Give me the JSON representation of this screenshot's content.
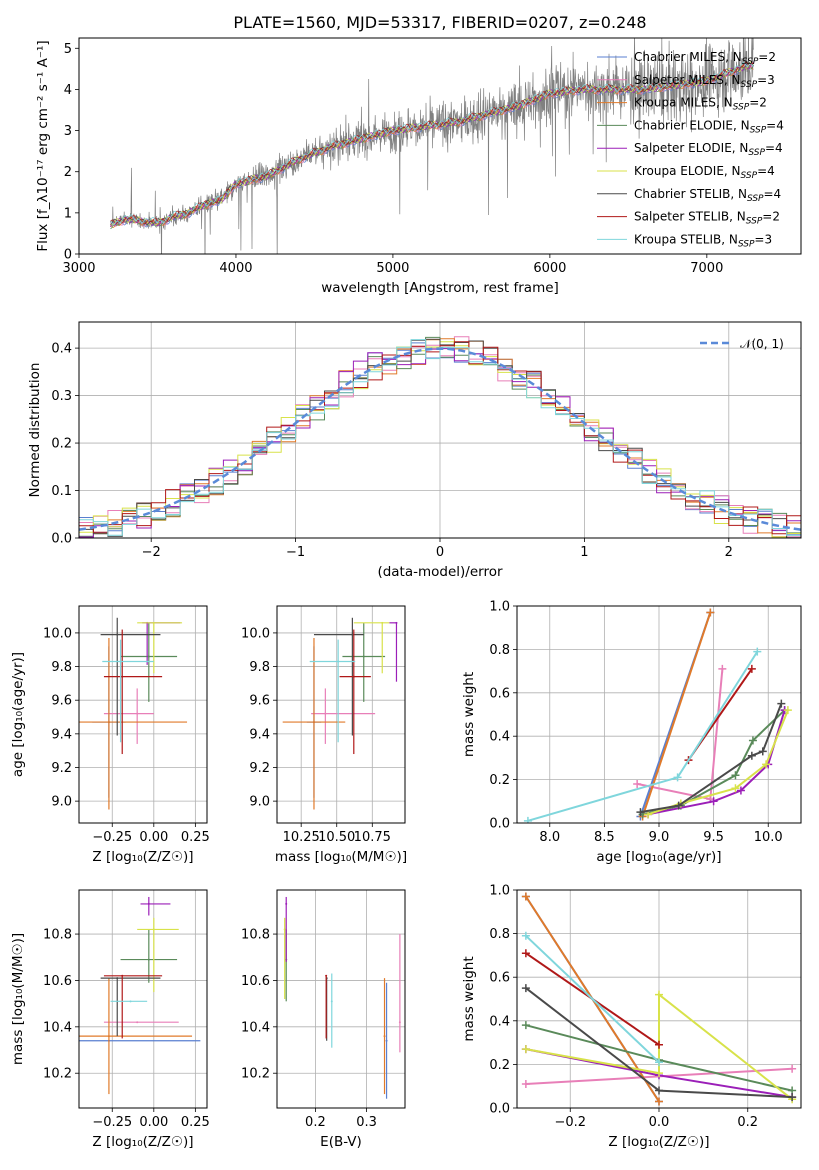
{
  "figure": {
    "title": "PLATE=1560, MJD=53317, FIBERID=0207, z=0.248"
  },
  "colors": {
    "Chabrier MILES": "#5a7fd0",
    "Salpeter MILES": "#e87fb8",
    "Kroupa MILES": "#e07a2a",
    "Chabrier ELODIE": "#5a8a5a",
    "Salpeter ELODIE": "#9b1fb8",
    "Kroupa ELODIE": "#d8e24a",
    "Chabrier STELIB": "#4a4a4a",
    "Salpeter STELIB": "#b01818",
    "Kroupa STELIB": "#7fd6dc",
    "data": "#808080",
    "normal": "#5a8ad8"
  },
  "chart_data": [
    {
      "id": "spectrum",
      "type": "line",
      "xlabel": "wavelength [Angstrom, rest frame]",
      "ylabel": "Flux [f_λ10⁻¹⁷ erg cm⁻² s⁻¹ A⁻¹]",
      "xlim": [
        3000,
        7600
      ],
      "ylim": [
        0,
        5.25
      ],
      "xticks": [
        "3000",
        "4000",
        "5000",
        "6000",
        "7000"
      ],
      "yticks": [
        "0",
        "1",
        "2",
        "3",
        "4",
        "5"
      ],
      "grid": false,
      "legend_position": "right",
      "legend": [
        {
          "name": "Chabrier MILES",
          "nssp": "2"
        },
        {
          "name": "Salpeter MILES",
          "nssp": "3"
        },
        {
          "name": "Kroupa MILES",
          "nssp": "2"
        },
        {
          "name": "Chabrier ELODIE",
          "nssp": "4"
        },
        {
          "name": "Salpeter ELODIE",
          "nssp": "4"
        },
        {
          "name": "Kroupa ELODIE",
          "nssp": "4"
        },
        {
          "name": "Chabrier STELIB",
          "nssp": "4"
        },
        {
          "name": "Salpeter STELIB",
          "nssp": "2"
        },
        {
          "name": "Kroupa STELIB",
          "nssp": "3"
        }
      ],
      "data_range": [
        3200,
        7300
      ],
      "model_knots": {
        "x": [
          3200,
          3300,
          3400,
          3500,
          3600,
          3700,
          3800,
          3900,
          4000,
          4200,
          4400,
          4600,
          4800,
          5000,
          5200,
          5400,
          5600,
          5800,
          6000,
          6200,
          6400,
          6600,
          6800,
          7000,
          7200,
          7300
        ],
        "y": [
          0.7,
          0.85,
          0.8,
          0.75,
          0.9,
          1.0,
          1.2,
          1.3,
          1.7,
          1.9,
          2.3,
          2.6,
          2.8,
          3.0,
          3.1,
          3.2,
          3.4,
          3.6,
          3.9,
          4.0,
          4.0,
          4.0,
          4.1,
          4.2,
          4.5,
          4.6
        ]
      }
    },
    {
      "id": "residuals",
      "type": "step",
      "xlabel": "(data-model)/error",
      "ylabel": "Normed distribution",
      "xlim": [
        -2.5,
        2.5
      ],
      "ylim": [
        0,
        0.455
      ],
      "xticks": [
        "−2",
        "−1",
        "0",
        "1",
        "2"
      ],
      "yticks": [
        "0.0",
        "0.1",
        "0.2",
        "0.3",
        "0.4"
      ],
      "grid": true,
      "legend_position": "top-right",
      "normal_label": "𝒩(0, 1)"
    },
    {
      "id": "Z-age",
      "type": "scatter",
      "xlabel": "Z [log₁₀(Z/Z☉)]",
      "ylabel": "age  [log₁₀(age/yr)]",
      "xlim": [
        -0.45,
        0.32
      ],
      "ylim": [
        8.87,
        10.16
      ],
      "xticks": [
        "−0.25",
        "0.00",
        "0.25"
      ],
      "yticks": [
        "9.0",
        "9.2",
        "9.4",
        "9.6",
        "9.8",
        "10.0"
      ],
      "grid": true,
      "points": [
        {
          "model": "Chabrier MILES",
          "x": -0.27,
          "y": 9.47,
          "xerr": [
            0.1,
            0.1
          ],
          "yerr": [
            0.45,
            0.45
          ]
        },
        {
          "model": "Salpeter MILES",
          "x": -0.1,
          "y": 9.52,
          "xerr": [
            0.2,
            0.1
          ],
          "yerr": [
            0.18,
            0.15
          ]
        },
        {
          "model": "Kroupa MILES",
          "x": -0.27,
          "y": 9.47,
          "xerr": [
            0.2,
            0.47
          ],
          "yerr": [
            0.52,
            0.5
          ]
        },
        {
          "model": "Chabrier ELODIE",
          "x": -0.03,
          "y": 9.86,
          "xerr": [
            0.17,
            0.17
          ],
          "yerr": [
            0.27,
            0.2
          ]
        },
        {
          "model": "Salpeter ELODIE",
          "x": -0.04,
          "y": 10.06,
          "xerr": [
            0.03,
            0.2
          ],
          "yerr": [
            0.25,
            0.0
          ]
        },
        {
          "model": "Kroupa ELODIE",
          "x": 0.0,
          "y": 10.06,
          "xerr": [
            0.1,
            0.17
          ],
          "yerr": [
            0.3,
            0.0
          ]
        },
        {
          "model": "Chabrier STELIB",
          "x": -0.22,
          "y": 9.99,
          "xerr": [
            0.1,
            0.26
          ],
          "yerr": [
            0.6,
            0.1
          ]
        },
        {
          "model": "Salpeter STELIB",
          "x": -0.19,
          "y": 9.74,
          "xerr": [
            0.11,
            0.24
          ],
          "yerr": [
            0.46,
            0.28
          ]
        },
        {
          "model": "Kroupa STELIB",
          "x": -0.2,
          "y": 9.83,
          "xerr": [
            0.11,
            0.2
          ],
          "yerr": [
            0.48,
            0.13
          ]
        }
      ]
    },
    {
      "id": "mass-age",
      "type": "scatter",
      "xlabel": "mass [log₁₀(M/M☉)]",
      "ylabel": "",
      "xlim": [
        10.08,
        10.98
      ],
      "ylim": [
        8.87,
        10.16
      ],
      "xticks": [
        "10.25",
        "10.50",
        "10.75"
      ],
      "yticks": [
        "9.0",
        "9.2",
        "9.4",
        "9.6",
        "9.8",
        "10.0"
      ],
      "grid": true,
      "points": [
        {
          "model": "Chabrier MILES",
          "x": 10.34,
          "y": 9.47,
          "xerr": [
            0.05,
            0.05
          ],
          "yerr": [
            0.45,
            0.45
          ]
        },
        {
          "model": "Salpeter MILES",
          "x": 10.42,
          "y": 9.52,
          "xerr": [
            0.1,
            0.35
          ],
          "yerr": [
            0.18,
            0.15
          ]
        },
        {
          "model": "Kroupa MILES",
          "x": 10.34,
          "y": 9.47,
          "xerr": [
            0.22,
            0.22
          ],
          "yerr": [
            0.52,
            0.5
          ]
        },
        {
          "model": "Chabrier ELODIE",
          "x": 10.69,
          "y": 9.86,
          "xerr": [
            0.15,
            0.15
          ],
          "yerr": [
            0.27,
            0.2
          ]
        },
        {
          "model": "Salpeter ELODIE",
          "x": 10.92,
          "y": 10.06,
          "xerr": [
            0.05,
            0.0
          ],
          "yerr": [
            0.35,
            0.0
          ]
        },
        {
          "model": "Kroupa ELODIE",
          "x": 10.82,
          "y": 10.06,
          "xerr": [
            0.2,
            0.05
          ],
          "yerr": [
            0.3,
            0.0
          ]
        },
        {
          "model": "Chabrier STELIB",
          "x": 10.61,
          "y": 9.99,
          "xerr": [
            0.27,
            0.08
          ],
          "yerr": [
            0.6,
            0.1
          ]
        },
        {
          "model": "Salpeter STELIB",
          "x": 10.62,
          "y": 9.74,
          "xerr": [
            0.1,
            0.12
          ],
          "yerr": [
            0.46,
            0.28
          ]
        },
        {
          "model": "Kroupa STELIB",
          "x": 10.51,
          "y": 9.83,
          "xerr": [
            0.2,
            0.12
          ],
          "yerr": [
            0.48,
            0.13
          ]
        }
      ]
    },
    {
      "id": "age-weight",
      "type": "line",
      "xlabel": "age  [log₁₀(age/yr)]",
      "ylabel": "mass weight",
      "xlim": [
        7.7,
        10.3
      ],
      "ylim": [
        0,
        1.0
      ],
      "xticks": [
        "8.0",
        "8.5",
        "9.0",
        "9.5",
        "10.0"
      ],
      "yticks": [
        "0.0",
        "0.2",
        "0.4",
        "0.6",
        "0.8",
        "1.0"
      ],
      "grid": true,
      "series": [
        {
          "model": "Chabrier MILES",
          "x": [
            8.83,
            9.47
          ],
          "y": [
            0.03,
            0.97
          ]
        },
        {
          "model": "Salpeter MILES",
          "x": [
            8.8,
            9.47,
            9.58
          ],
          "y": [
            0.18,
            0.11,
            0.71
          ]
        },
        {
          "model": "Kroupa MILES",
          "x": [
            8.85,
            9.47
          ],
          "y": [
            0.03,
            0.97
          ]
        },
        {
          "model": "Chabrier ELODIE",
          "x": [
            8.85,
            9.2,
            9.7,
            9.86,
            10.15
          ],
          "y": [
            0.04,
            0.08,
            0.22,
            0.38,
            0.52
          ]
        },
        {
          "model": "Salpeter ELODIE",
          "x": [
            8.9,
            9.5,
            9.75,
            10.0,
            10.15
          ],
          "y": [
            0.04,
            0.1,
            0.15,
            0.27,
            0.52
          ]
        },
        {
          "model": "Kroupa ELODIE",
          "x": [
            8.9,
            9.2,
            9.7,
            9.98,
            10.18
          ],
          "y": [
            0.04,
            0.09,
            0.16,
            0.27,
            0.52
          ]
        },
        {
          "model": "Chabrier STELIB",
          "x": [
            8.83,
            9.18,
            9.85,
            9.95,
            10.12
          ],
          "y": [
            0.05,
            0.08,
            0.31,
            0.33,
            0.55
          ]
        },
        {
          "model": "Salpeter STELIB",
          "x": [
            9.27,
            9.85
          ],
          "y": [
            0.29,
            0.71
          ]
        },
        {
          "model": "Kroupa STELIB",
          "x": [
            7.8,
            9.17,
            9.9
          ],
          "y": [
            0.01,
            0.21,
            0.79
          ]
        }
      ]
    },
    {
      "id": "Z-mass",
      "type": "scatter",
      "xlabel": "Z [log₁₀(Z/Z☉)]",
      "ylabel": "mass [log₁₀(M/M☉)]",
      "xlim": [
        -0.45,
        0.32
      ],
      "ylim": [
        10.05,
        10.99
      ],
      "xticks": [
        "−0.25",
        "0.00",
        "0.25"
      ],
      "yticks": [
        "10.2",
        "10.4",
        "10.6",
        "10.8"
      ],
      "grid": true,
      "points": [
        {
          "model": "Chabrier MILES",
          "x": -0.27,
          "y": 10.34,
          "xerr": [
            0.2,
            0.55
          ],
          "yerr": [
            0.0,
            0.0
          ]
        },
        {
          "model": "Salpeter MILES",
          "x": -0.1,
          "y": 10.42,
          "xerr": [
            0.2,
            0.25
          ],
          "yerr": [
            0.0,
            0.0
          ]
        },
        {
          "model": "Kroupa MILES",
          "x": -0.27,
          "y": 10.36,
          "xerr": [
            0.2,
            0.5
          ],
          "yerr": [
            0.25,
            0.25
          ]
        },
        {
          "model": "Chabrier ELODIE",
          "x": -0.03,
          "y": 10.69,
          "xerr": [
            0.17,
            0.17
          ],
          "yerr": [
            0.1,
            0.13
          ]
        },
        {
          "model": "Salpeter ELODIE",
          "x": -0.03,
          "y": 10.93,
          "xerr": [
            0.05,
            0.13
          ],
          "yerr": [
            0.05,
            0.03
          ]
        },
        {
          "model": "Kroupa ELODIE",
          "x": 0.0,
          "y": 10.82,
          "xerr": [
            0.1,
            0.15
          ],
          "yerr": [
            0.27,
            0.05
          ]
        },
        {
          "model": "Chabrier STELIB",
          "x": -0.22,
          "y": 10.61,
          "xerr": [
            0.1,
            0.26
          ],
          "yerr": [
            0.25,
            0.0
          ]
        },
        {
          "model": "Salpeter STELIB",
          "x": -0.19,
          "y": 10.62,
          "xerr": [
            0.11,
            0.24
          ],
          "yerr": [
            0.27,
            0.0
          ]
        },
        {
          "model": "Kroupa STELIB",
          "x": -0.14,
          "y": 10.51,
          "xerr": [
            0.12,
            0.1
          ],
          "yerr": [
            0.0,
            0.0
          ]
        }
      ]
    },
    {
      "id": "ebv-mass",
      "type": "scatter",
      "xlabel": "E(B-V)",
      "ylabel": "",
      "xlim": [
        0.125,
        0.375
      ],
      "ylim": [
        10.05,
        10.99
      ],
      "xticks": [
        "0.2",
        "0.3"
      ],
      "yticks": [
        "10.2",
        "10.4",
        "10.6",
        "10.8"
      ],
      "grid": true,
      "points": [
        {
          "model": "Chabrier MILES",
          "x": 0.339,
          "y": 10.34,
          "yerr": [
            0.25,
            0.25
          ]
        },
        {
          "model": "Salpeter MILES",
          "x": 0.365,
          "y": 10.42,
          "yerr": [
            0.13,
            0.38
          ]
        },
        {
          "model": "Kroupa MILES",
          "x": 0.335,
          "y": 10.36,
          "yerr": [
            0.25,
            0.25
          ]
        },
        {
          "model": "Chabrier ELODIE",
          "x": 0.143,
          "y": 10.69,
          "yerr": [
            0.18,
            0.13
          ]
        },
        {
          "model": "Salpeter ELODIE",
          "x": 0.143,
          "y": 10.93,
          "yerr": [
            0.25,
            0.03
          ]
        },
        {
          "model": "Kroupa ELODIE",
          "x": 0.14,
          "y": 10.82,
          "yerr": [
            0.3,
            0.05
          ]
        },
        {
          "model": "Chabrier STELIB",
          "x": 0.222,
          "y": 10.61,
          "yerr": [
            0.27,
            0.0
          ]
        },
        {
          "model": "Salpeter STELIB",
          "x": 0.221,
          "y": 10.62,
          "yerr": [
            0.27,
            0.0
          ]
        },
        {
          "model": "Kroupa STELIB",
          "x": 0.232,
          "y": 10.51,
          "yerr": [
            0.2,
            0.12
          ]
        }
      ]
    },
    {
      "id": "Z-weight",
      "type": "line",
      "xlabel": "Z [log₁₀(Z/Z☉)]",
      "ylabel": "mass weight",
      "xlim": [
        -0.32,
        0.32
      ],
      "ylim": [
        0,
        1.0
      ],
      "xticks": [
        "−0.2",
        "0.0",
        "0.2"
      ],
      "yticks": [
        "0.0",
        "0.2",
        "0.4",
        "0.6",
        "0.8",
        "1.0"
      ],
      "grid": true,
      "series": [
        {
          "model": "Chabrier MILES",
          "x": [
            -0.3,
            0.0
          ],
          "y": [
            0.97,
            0.03
          ]
        },
        {
          "model": "Salpeter MILES",
          "x": [
            -0.3,
            0.3
          ],
          "y": [
            0.11,
            0.18
          ]
        },
        {
          "model": "Kroupa MILES",
          "x": [
            -0.3,
            0.0
          ],
          "y": [
            0.97,
            0.03
          ]
        },
        {
          "model": "Chabrier ELODIE",
          "x": [
            -0.3,
            0.0,
            0.3
          ],
          "y": [
            0.38,
            0.22,
            0.08
          ]
        },
        {
          "model": "Salpeter ELODIE",
          "x": [
            -0.3,
            0.0,
            0.3
          ],
          "y": [
            0.27,
            0.15,
            0.05
          ]
        },
        {
          "model": "Kroupa ELODIE",
          "x": [
            -0.3,
            0.0,
            0.0,
            0.3
          ],
          "y": [
            0.27,
            0.16,
            0.52,
            0.04
          ]
        },
        {
          "model": "Chabrier STELIB",
          "x": [
            -0.3,
            0.0,
            0.3
          ],
          "y": [
            0.55,
            0.08,
            0.05
          ]
        },
        {
          "model": "Salpeter STELIB",
          "x": [
            -0.3,
            0.0
          ],
          "y": [
            0.71,
            0.29
          ]
        },
        {
          "model": "Kroupa STELIB",
          "x": [
            -0.3,
            0.0
          ],
          "y": [
            0.79,
            0.21
          ]
        }
      ]
    }
  ]
}
